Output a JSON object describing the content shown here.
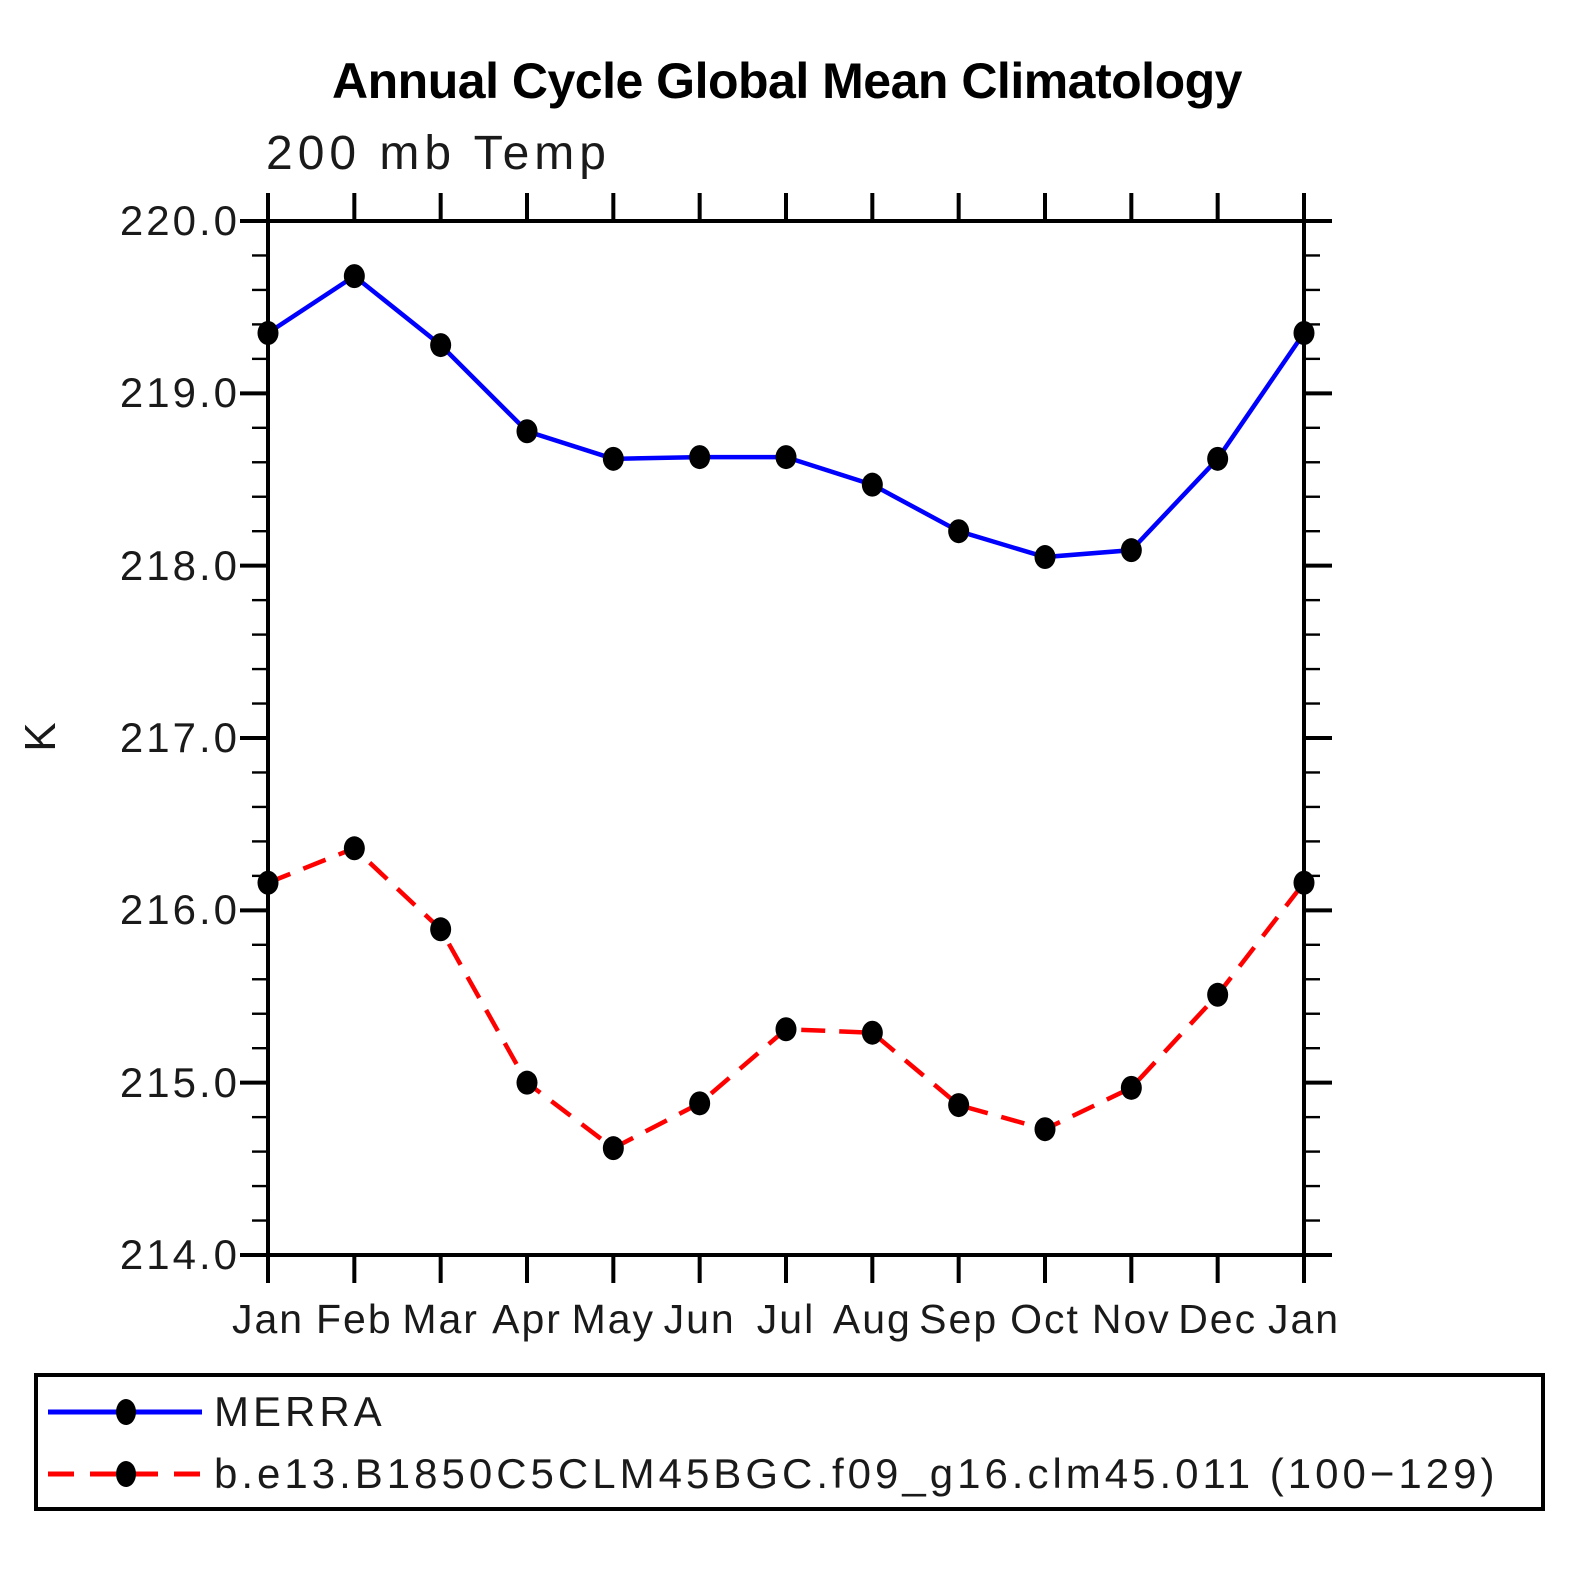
{
  "page": {
    "background": "#ffffff"
  },
  "chart_data": {
    "type": "line",
    "title": "Annual Cycle Global Mean Climatology",
    "subtitle": "200 mb Temp",
    "ylabel": "K",
    "xlabel": "",
    "categories": [
      "Jan",
      "Feb",
      "Mar",
      "Apr",
      "May",
      "Jun",
      "Jul",
      "Aug",
      "Sep",
      "Oct",
      "Nov",
      "Dec",
      "Jan"
    ],
    "series": [
      {
        "name": "MERRA",
        "color": "#0000ff",
        "line_style": "solid",
        "marker": "filled-circle",
        "marker_color": "#000000",
        "values": [
          219.35,
          219.68,
          219.28,
          218.78,
          218.62,
          218.63,
          218.63,
          218.47,
          218.2,
          218.05,
          218.09,
          218.62,
          219.35
        ]
      },
      {
        "name": "b.e13.B1850C5CLM45BGC.f09_g16.clm45.011 (100−129)",
        "color": "#ff0000",
        "line_style": "dashed",
        "marker": "filled-circle",
        "marker_color": "#000000",
        "values": [
          216.16,
          216.36,
          215.89,
          215.0,
          214.62,
          214.88,
          215.31,
          215.29,
          214.87,
          214.73,
          214.97,
          215.51,
          216.16
        ]
      }
    ],
    "ylim": [
      214.0,
      220.0
    ],
    "ytick_labels_top_to_bottom": [
      "220.0",
      "219.0",
      "218.0",
      "217.0",
      "216.0",
      "215.0",
      "214.0"
    ],
    "ytick_major_interval": 1.0,
    "ytick_minor_interval": 0.2,
    "grid": false,
    "axis_color": "#000000",
    "legend_position": "bottom-box"
  }
}
